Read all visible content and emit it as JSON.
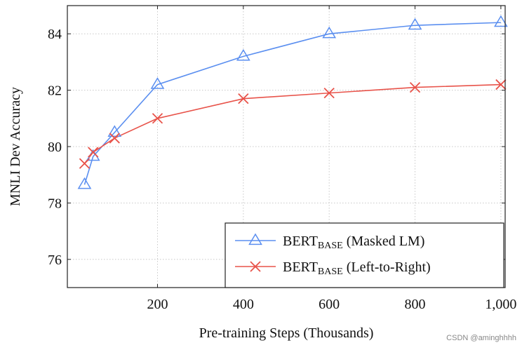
{
  "chart_data": {
    "type": "line",
    "title": "",
    "xlabel": "Pre-training Steps (Thousands)",
    "ylabel": "MNLI Dev Accuracy",
    "xlim": [
      -10,
      1010
    ],
    "ylim": [
      75,
      85
    ],
    "xticks": [
      200,
      400,
      600,
      800,
      1000
    ],
    "xtick_labels": [
      "200",
      "400",
      "600",
      "800",
      "1,000"
    ],
    "yticks": [
      76,
      78,
      80,
      82,
      84
    ],
    "ytick_labels": [
      "76",
      "78",
      "80",
      "82",
      "84"
    ],
    "grid": true,
    "legend_position": "bottom-right",
    "series": [
      {
        "name": "BERT",
        "name_subscript": "BASE",
        "name_suffix": " (Masked LM)",
        "color": "#5b8ff0",
        "marker": "triangle",
        "x": [
          30,
          50,
          100,
          200,
          400,
          600,
          800,
          1000
        ],
        "y": [
          78.65,
          79.65,
          80.5,
          82.2,
          83.2,
          84.0,
          84.3,
          84.4
        ]
      },
      {
        "name": "BERT",
        "name_subscript": "BASE",
        "name_suffix": " (Left-to-Right)",
        "color": "#e8534a",
        "marker": "x",
        "x": [
          30,
          50,
          100,
          200,
          400,
          600,
          800,
          1000
        ],
        "y": [
          79.4,
          79.8,
          80.3,
          81.0,
          81.7,
          81.9,
          82.1,
          82.2
        ]
      }
    ]
  },
  "watermark": "CSDN @aminghhhh"
}
